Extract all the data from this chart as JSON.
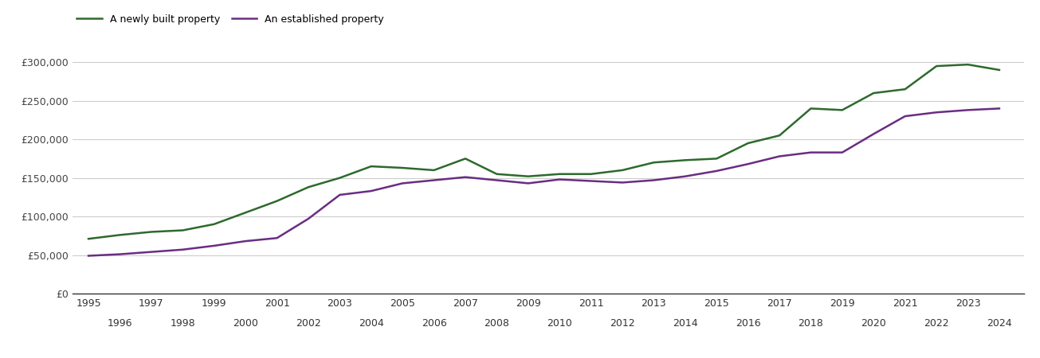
{
  "newly_built": {
    "years": [
      1995,
      1996,
      1997,
      1998,
      1999,
      2000,
      2001,
      2002,
      2003,
      2004,
      2005,
      2006,
      2007,
      2008,
      2009,
      2010,
      2011,
      2012,
      2013,
      2014,
      2015,
      2016,
      2017,
      2018,
      2019,
      2020,
      2021,
      2022,
      2023,
      2024
    ],
    "values": [
      71000,
      76000,
      80000,
      82000,
      90000,
      105000,
      120000,
      138000,
      150000,
      165000,
      163000,
      160000,
      175000,
      155000,
      152000,
      155000,
      155000,
      160000,
      170000,
      173000,
      175000,
      195000,
      205000,
      240000,
      238000,
      260000,
      265000,
      295000,
      297000,
      290000
    ]
  },
  "established": {
    "years": [
      1995,
      1996,
      1997,
      1998,
      1999,
      2000,
      2001,
      2002,
      2003,
      2004,
      2005,
      2006,
      2007,
      2008,
      2009,
      2010,
      2011,
      2012,
      2013,
      2014,
      2015,
      2016,
      2017,
      2018,
      2019,
      2020,
      2021,
      2022,
      2023,
      2024
    ],
    "values": [
      49000,
      51000,
      54000,
      57000,
      62000,
      68000,
      72000,
      97000,
      128000,
      133000,
      143000,
      147000,
      151000,
      147000,
      143000,
      148000,
      146000,
      144000,
      147000,
      152000,
      159000,
      168000,
      178000,
      183000,
      183000,
      207000,
      230000,
      235000,
      238000,
      240000
    ]
  },
  "new_color": "#2d6a2d",
  "established_color": "#6a2d82",
  "new_label": "A newly built property",
  "established_label": "An established property",
  "ylim": [
    0,
    325000
  ],
  "yticks": [
    0,
    50000,
    100000,
    150000,
    200000,
    250000,
    300000
  ],
  "ytick_labels": [
    "£0",
    "£50,000",
    "£100,000",
    "£150,000",
    "£200,000",
    "£250,000",
    "£300,000"
  ],
  "xlim_min": 1994.5,
  "xlim_max": 2024.8,
  "grid_color": "#cccccc",
  "bg_color": "#ffffff",
  "line_width": 1.8
}
